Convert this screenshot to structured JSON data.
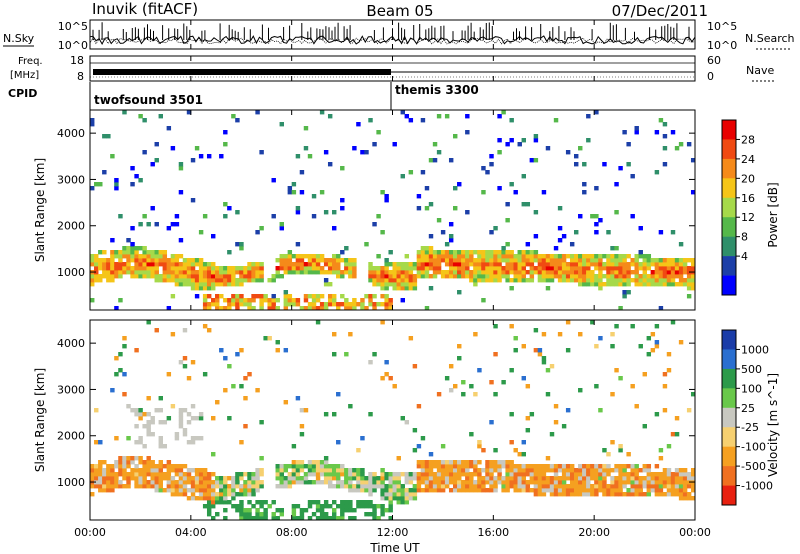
{
  "header": {
    "station": "Inuvik (fitACF)",
    "beam": "Beam 05",
    "date": "07/Dec/2011"
  },
  "summary": {
    "nsky_label": "N.Sky",
    "nsearch_label": "N.Search",
    "nsky_ticks": [
      "10^5",
      "10^0"
    ],
    "nsearch_ticks": [
      "10^5",
      "10^0"
    ],
    "freq_label_line1": "Freq.",
    "freq_label_line2": "[MHz]",
    "freq_ticks": [
      "18",
      "8"
    ],
    "nave_label": "Nave",
    "nave_ticks": [
      "60",
      "0"
    ],
    "cpid_label": "CPID",
    "cpid_segments": [
      {
        "name": "twofsound 3501",
        "start_hour": 0,
        "end_hour": 12
      },
      {
        "name": "themis 3300",
        "start_hour": 12,
        "end_hour": 24
      }
    ]
  },
  "colors": {
    "power": [
      "#0000ff",
      "#1c3fa8",
      "#2f8f6a",
      "#55b84a",
      "#a6d94a",
      "#f5c518",
      "#f58a1a",
      "#f04a12",
      "#e80000"
    ],
    "velocity": [
      "#1a3ca8",
      "#2a6fd0",
      "#2c9a4a",
      "#69c84a",
      "#c8c8c0",
      "#f6d070",
      "#f5a020",
      "#f07020",
      "#e82010"
    ]
  },
  "chart_data": [
    {
      "type": "heatmap",
      "panel": "power",
      "xlabel": "",
      "ylabel": "Slant Range [km]",
      "xlim": [
        0,
        24
      ],
      "ylim": [
        180,
        4500
      ],
      "yticks": [
        "1000",
        "2000",
        "3000",
        "4000"
      ],
      "colorbar": {
        "label": "Power [dB]",
        "ticks": [
          "28",
          "24",
          "20",
          "16",
          "12",
          "8",
          "4"
        ]
      },
      "features": [
        {
          "name": "main echo band",
          "hours": [
            0,
            24
          ],
          "range_km": [
            600,
            1600
          ],
          "power_db": 26
        },
        {
          "name": "ground scatter near range",
          "hours": [
            4.5,
            12
          ],
          "range_km": [
            200,
            600
          ],
          "power_db": 24
        },
        {
          "name": "far range scatter",
          "hours": [
            0,
            24
          ],
          "range_km": [
            1600,
            4500
          ],
          "power_db": 10
        }
      ]
    },
    {
      "type": "heatmap",
      "panel": "velocity",
      "xlabel": "Time UT",
      "ylabel": "Slant Range [km]",
      "xlim": [
        0,
        24
      ],
      "ylim": [
        180,
        4500
      ],
      "xticks": [
        "00:00",
        "04:00",
        "08:00",
        "12:00",
        "16:00",
        "20:00",
        "00:00"
      ],
      "yticks": [
        "1000",
        "2000",
        "3000",
        "4000"
      ],
      "colorbar": {
        "label": "Velocity [m s^-1]",
        "ticks": [
          "1000",
          "500",
          "100",
          "25",
          "-25",
          "-100",
          "-500",
          "-1000"
        ]
      },
      "features": [
        {
          "name": "receding flow band",
          "hours": [
            0,
            5
          ],
          "range_km": [
            600,
            1600
          ],
          "velocity_ms": -300
        },
        {
          "name": "low velocity scatter",
          "hours": [
            5,
            12
          ],
          "range_km": [
            200,
            1800
          ],
          "velocity_ms": 50
        },
        {
          "name": "mixed flow",
          "hours": [
            12,
            24
          ],
          "range_km": [
            600,
            1700
          ],
          "velocity_ms": -200
        }
      ]
    }
  ],
  "title": "",
  "subtitle": "",
  "source": "",
  "notes": ""
}
